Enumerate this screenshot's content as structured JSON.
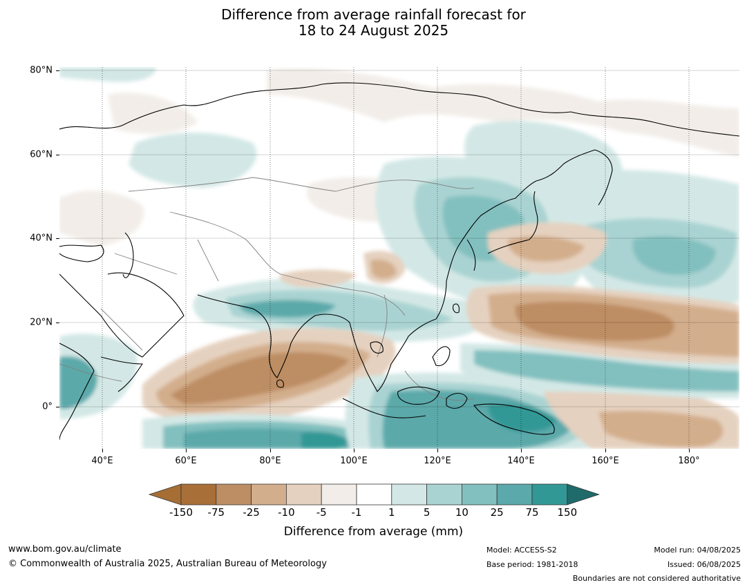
{
  "title_line1": "Difference from average rainfall forecast for",
  "title_line2": "18 to 24 August 2025",
  "lat_labels": [
    "80°N",
    "60°N",
    "40°N",
    "20°N",
    "0°"
  ],
  "lon_labels": [
    "40°E",
    "60°E",
    "80°E",
    "100°E",
    "120°E",
    "140°E",
    "160°E",
    "180°"
  ],
  "colorbar": {
    "label": "Difference from average (mm)",
    "ticks": [
      "-150",
      "-75",
      "-25",
      "-10",
      "-5",
      "-1",
      "1",
      "5",
      "10",
      "25",
      "75",
      "150"
    ],
    "colors": [
      "#a66e35",
      "#a96f38",
      "#bd8d63",
      "#d3ae8c",
      "#e5d1bf",
      "#f2ede8",
      "#ffffff",
      "#d3e8e6",
      "#a9d3d2",
      "#82c0bf",
      "#5ba9aa",
      "#329895",
      "#1f6a6a"
    ]
  },
  "footer": {
    "url": "www.bom.gov.au/climate",
    "copyright": "© Commonwealth of Australia 2025, Australian Bureau of Meteorology",
    "model": "Model: ACCESS-S2",
    "base_period": "Base period: 1981-2018",
    "model_run": "Model run: 04/08/2025",
    "issued": "Issued: 06/08/2025",
    "boundaries": "Boundaries are not considered authoritative"
  }
}
